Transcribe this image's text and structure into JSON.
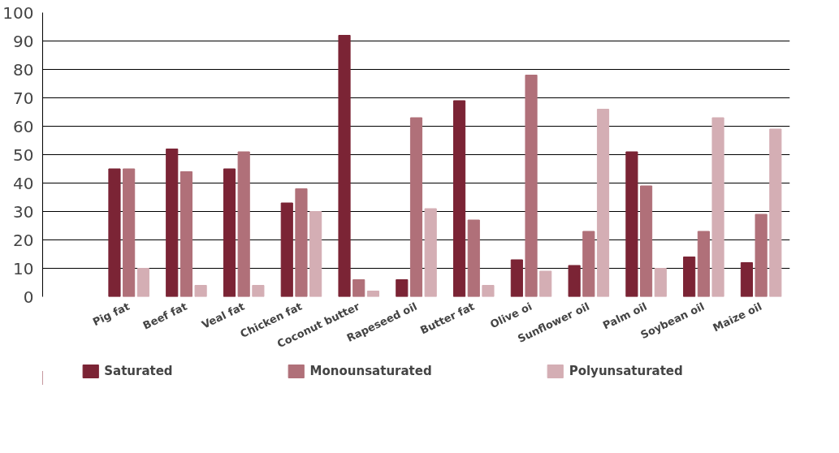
{
  "chart_data": {
    "type": "bar",
    "categories": [
      null,
      "Pig fat",
      "Beef fat",
      "Veal fat",
      "Chicken fat",
      "Coconut butter",
      "Rapeseed oil",
      "Butter fat",
      "Olive oi",
      "Sunflower oil",
      "Palm oil",
      "Soybean oil",
      "Maize oil"
    ],
    "series": [
      {
        "name": "Saturated",
        "color": "#7b2435",
        "values": [
          null,
          45,
          52,
          45,
          33,
          92,
          6,
          69,
          13,
          11,
          51,
          14,
          12
        ]
      },
      {
        "name": "Monounsaturated",
        "color": "#b07079",
        "values": [
          null,
          45,
          44,
          51,
          38,
          6,
          63,
          27,
          78,
          23,
          39,
          23,
          29
        ]
      },
      {
        "name": "Polyunsaturated",
        "color": "#d4aeb4",
        "values": [
          null,
          10,
          4,
          4,
          30,
          2,
          31,
          4,
          9,
          66,
          10,
          63,
          59
        ]
      }
    ],
    "ylim": [
      0,
      100
    ],
    "yticks": [
      0,
      10,
      20,
      30,
      40,
      50,
      60,
      70,
      80,
      90,
      100
    ],
    "grid": "y",
    "legend": "bottom"
  }
}
